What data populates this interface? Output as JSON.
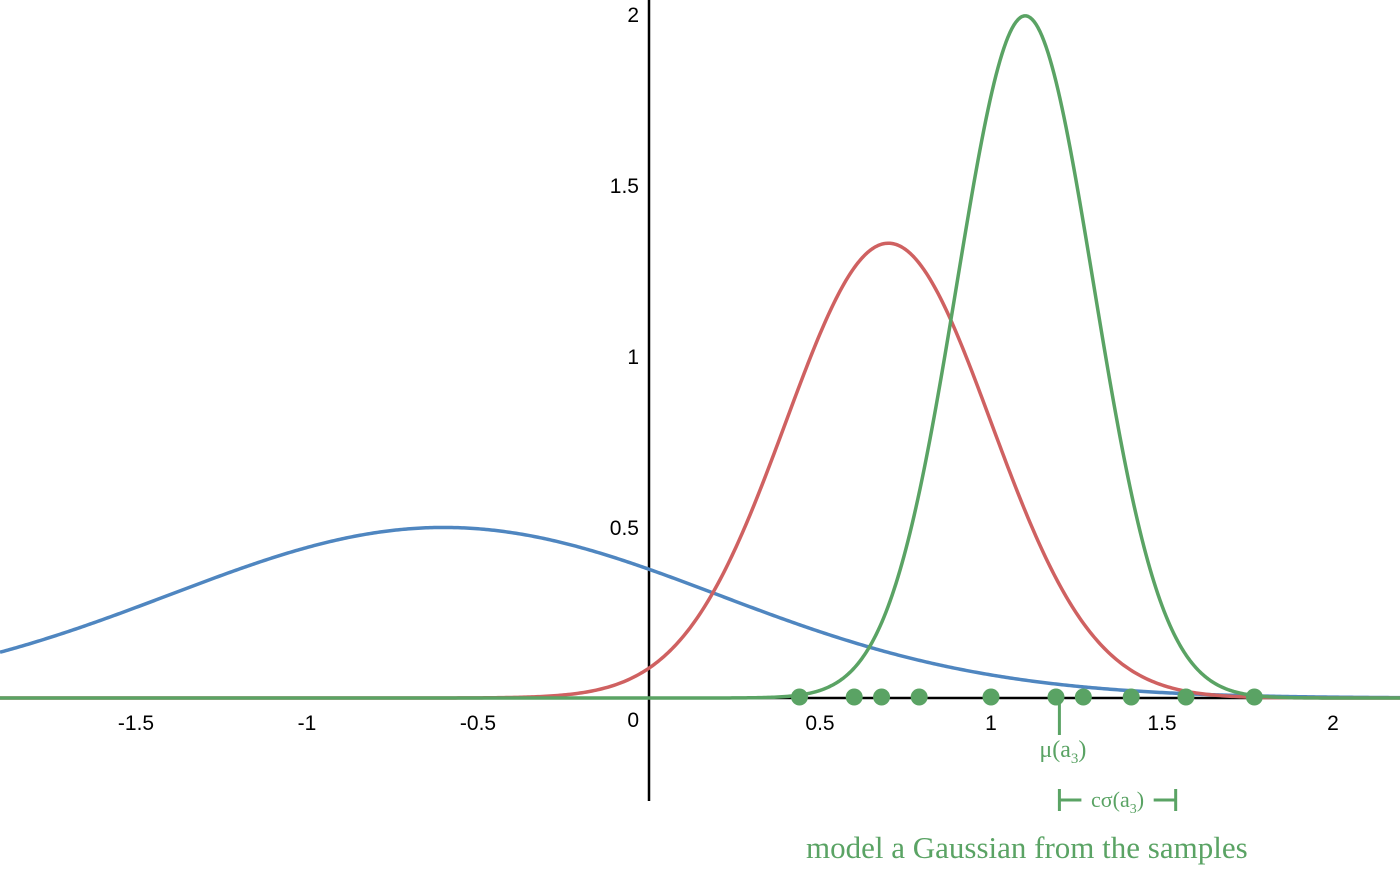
{
  "chart_data": {
    "type": "line",
    "title": "",
    "xlabel": "",
    "ylabel": "",
    "xlim": [
      -1.9,
      2.2
    ],
    "ylim": [
      -0.3,
      2.05
    ],
    "x_ticks": [
      -1.5,
      -1,
      -0.5,
      0.5,
      1,
      1.5,
      2
    ],
    "x_tick_labels": [
      "-1.5",
      "-1",
      "-0.5",
      "0.5",
      "1",
      "1.5",
      "2"
    ],
    "y_ticks": [
      0.5,
      1,
      1.5,
      2
    ],
    "y_tick_labels": [
      "0.5",
      "1",
      "1.5",
      "2"
    ],
    "origin_label": "0",
    "grid": false,
    "legend": "none",
    "series": [
      {
        "color": "#4f86c0",
        "distribution": "gaussian",
        "mean": -0.6,
        "std": 0.8
      },
      {
        "color": "#cf6161",
        "distribution": "gaussian",
        "mean": 0.7,
        "std": 0.3
      },
      {
        "color": "#5aa364",
        "distribution": "gaussian",
        "mean": 1.1,
        "std": 0.2
      }
    ],
    "samples": {
      "color": "#5aa364",
      "x": [
        0.44,
        0.6,
        0.68,
        0.79,
        1.0,
        1.19,
        1.27,
        1.41,
        1.57,
        1.77
      ]
    },
    "mean_marker": {
      "x": 1.2,
      "label_base": "μ(a",
      "label_sub": "3",
      "label_close": ")"
    },
    "sigma_bracket": {
      "x_start": 1.2,
      "x_end": 1.54,
      "label_base": "cσ(a",
      "label_sub": "3",
      "label_close": ")"
    },
    "annotation": "model a Gaussian from the samples"
  }
}
